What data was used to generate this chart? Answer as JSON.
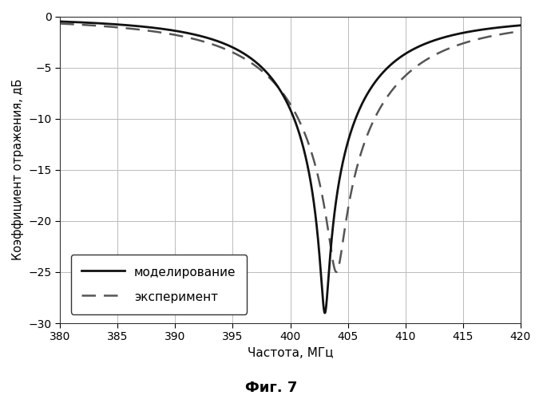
{
  "title": "",
  "xlabel": "Частота, МГц",
  "ylabel": "Коэффициент отражения, дБ",
  "fig_label": "Фиг. 7",
  "legend_modeling": "моделирование",
  "legend_experiment": "эксперимент",
  "xmin": 380,
  "xmax": 420,
  "ymin": -30,
  "ymax": 0,
  "xticks": [
    380,
    385,
    390,
    395,
    400,
    405,
    410,
    415,
    420
  ],
  "yticks": [
    0,
    -5,
    -10,
    -15,
    -20,
    -25,
    -30
  ],
  "modeling_color": "#111111",
  "experiment_color": "#555555",
  "modeling_linewidth": 2.0,
  "experiment_linewidth": 1.8,
  "background_color": "#ffffff",
  "grid_color": "#bbbbbb"
}
